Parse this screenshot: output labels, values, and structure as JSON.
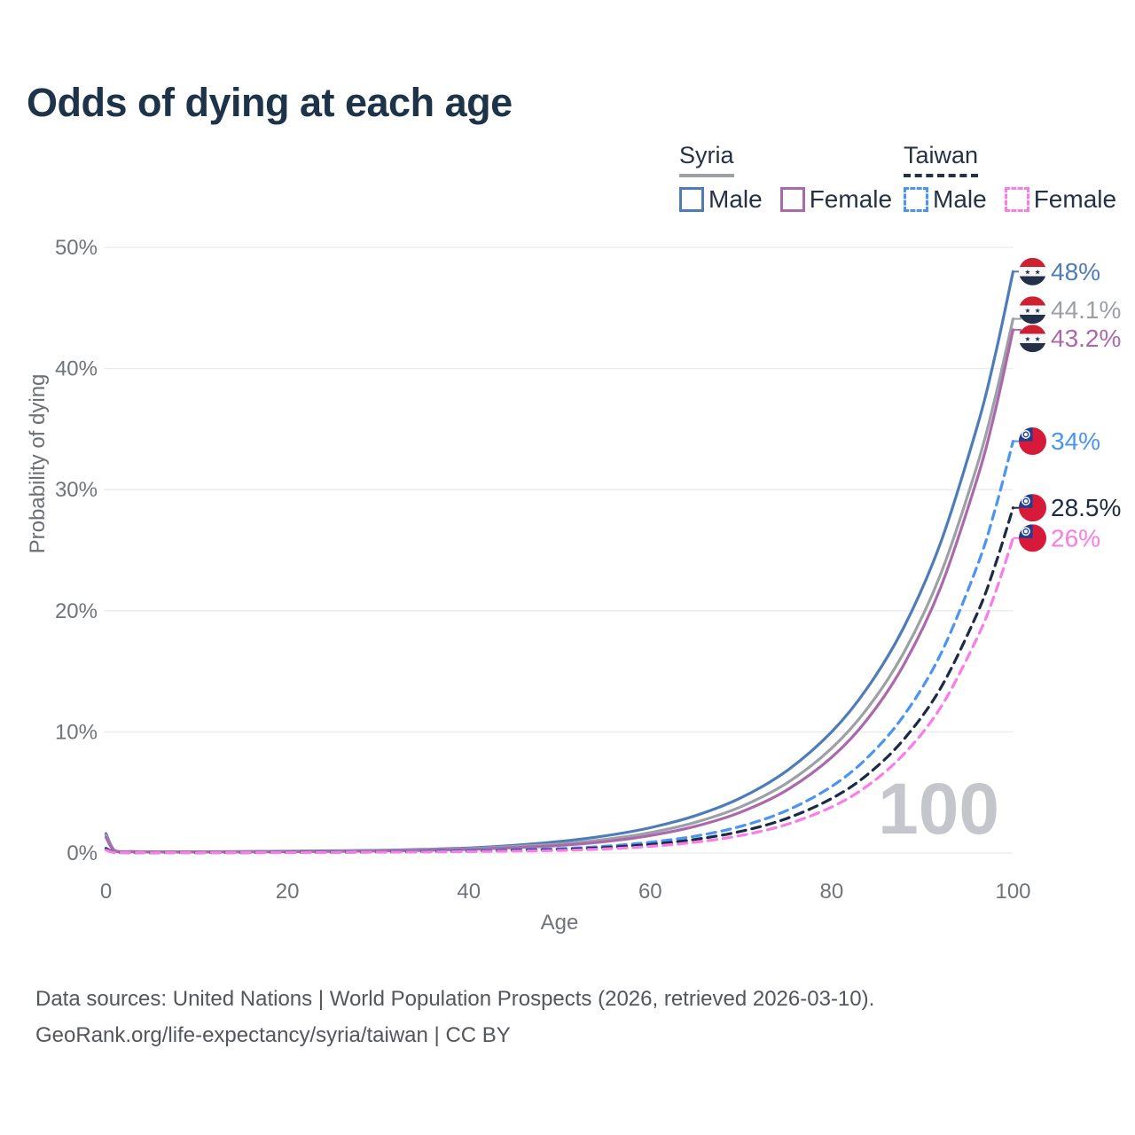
{
  "title": "Odds of dying at each age",
  "watermark": "100",
  "legend": {
    "groups": [
      {
        "country": "Syria",
        "line_style": "solid",
        "underline_color": "#9da0a4",
        "items": [
          {
            "label": "Male",
            "color": "#4d7cb8"
          },
          {
            "label": "Female",
            "color": "#ab68ad"
          }
        ]
      },
      {
        "country": "Taiwan",
        "line_style": "dashed",
        "underline_color": "#253246",
        "items": [
          {
            "label": "Male",
            "color": "#4b94f2"
          },
          {
            "label": "Female",
            "color": "#fa7ce6"
          }
        ]
      }
    ]
  },
  "axes": {
    "x": {
      "title": "Age",
      "min": 0,
      "max": 100,
      "ticks": [
        {
          "value": 0,
          "label": "0"
        },
        {
          "value": 20,
          "label": "20"
        },
        {
          "value": 40,
          "label": "40"
        },
        {
          "value": 60,
          "label": "60"
        },
        {
          "value": 80,
          "label": "80"
        },
        {
          "value": 100,
          "label": "100"
        }
      ]
    },
    "y": {
      "title": "Probability of dying",
      "min": 0,
      "max": 50,
      "ticks": [
        {
          "value": 0,
          "label": "0%"
        },
        {
          "value": 10,
          "label": "10%"
        },
        {
          "value": 20,
          "label": "20%"
        },
        {
          "value": 30,
          "label": "30%"
        },
        {
          "value": 40,
          "label": "40%"
        },
        {
          "value": 50,
          "label": "50%"
        }
      ]
    }
  },
  "footer": {
    "line1": "Data sources: United Nations | World Population Prospects (2026, retrieved 2026-03-10).",
    "line2": "GeoRank.org/life-expectancy/syria/taiwan | CC BY"
  },
  "flag_colors": {
    "syria": {
      "top": "#cd2030",
      "middle": "#f7f8fa",
      "bottom": "#233048",
      "stars": "#233048"
    },
    "taiwan": {
      "field": "#d7193a",
      "canton": "#1e3f8f",
      "sun": "#ffffff"
    }
  },
  "chart_data": {
    "type": "line",
    "title": "Odds of dying at each age",
    "xlabel": "Age",
    "ylabel": "Probability of dying",
    "xlim": [
      0,
      100
    ],
    "ylim": [
      0,
      50
    ],
    "grid": "horizontal",
    "legend_position": "top-right",
    "x": [
      0,
      1,
      3,
      5,
      10,
      15,
      20,
      25,
      30,
      35,
      40,
      45,
      50,
      55,
      60,
      65,
      70,
      75,
      80,
      84,
      88,
      92,
      96,
      98,
      100
    ],
    "series": [
      {
        "name": "Syria Male",
        "country": "Syria",
        "sex": "male",
        "color": "#4d7cb8",
        "dash": false,
        "flag": "syria",
        "end_label": "48%",
        "values": [
          1.6,
          0.2,
          0.12,
          0.1,
          0.1,
          0.12,
          0.15,
          0.18,
          0.22,
          0.3,
          0.42,
          0.64,
          0.95,
          1.41,
          2.09,
          3.09,
          4.56,
          6.76,
          10.0,
          13.7,
          18.7,
          25.6,
          35.1,
          41.0,
          48
        ]
      },
      {
        "name": "Syria Both sexes",
        "country": "Syria",
        "sex": "both",
        "color": "#9da0a4",
        "dash": false,
        "flag": "syria",
        "end_label": "44.1%",
        "values": [
          1.45,
          0.18,
          0.11,
          0.09,
          0.09,
          0.1,
          0.13,
          0.16,
          0.2,
          0.26,
          0.36,
          0.54,
          0.74,
          1.12,
          1.68,
          2.54,
          3.82,
          5.75,
          8.65,
          12.0,
          16.6,
          23.0,
          31.9,
          37.5,
          44.1
        ]
      },
      {
        "name": "Syria Female",
        "country": "Syria",
        "sex": "female",
        "color": "#ab68ad",
        "dash": false,
        "flag": "syria",
        "end_label": "43.2%",
        "values": [
          1.3,
          0.16,
          0.1,
          0.08,
          0.08,
          0.09,
          0.11,
          0.14,
          0.17,
          0.22,
          0.3,
          0.45,
          0.62,
          0.94,
          1.44,
          2.21,
          3.38,
          5.17,
          7.9,
          11.1,
          15.6,
          21.9,
          30.8,
          36.4,
          43.2
        ]
      },
      {
        "name": "Taiwan Male",
        "country": "Taiwan",
        "sex": "male",
        "color": "#4b94f2",
        "dash": true,
        "flag": "taiwan",
        "end_label": "34%",
        "values": [
          0.4,
          0.05,
          0.03,
          0.03,
          0.03,
          0.04,
          0.06,
          0.08,
          0.11,
          0.15,
          0.21,
          0.28,
          0.36,
          0.56,
          0.89,
          1.4,
          2.21,
          3.49,
          5.5,
          7.92,
          11.4,
          16.4,
          23.6,
          28.3,
          34
        ]
      },
      {
        "name": "Taiwan Both sexes",
        "country": "Taiwan",
        "sex": "both",
        "color": "#1c2b45",
        "dash": true,
        "flag": "taiwan",
        "end_label": "28.5%",
        "values": [
          0.35,
          0.04,
          0.02,
          0.02,
          0.03,
          0.03,
          0.05,
          0.06,
          0.08,
          0.11,
          0.15,
          0.21,
          0.28,
          0.45,
          0.71,
          1.13,
          1.79,
          2.84,
          4.5,
          6.51,
          9.42,
          13.6,
          19.7,
          23.7,
          28.5
        ]
      },
      {
        "name": "Taiwan Female",
        "country": "Taiwan",
        "sex": "female",
        "color": "#fa7ce6",
        "dash": true,
        "flag": "taiwan",
        "end_label": "26%",
        "values": [
          0.25,
          0.03,
          0.02,
          0.02,
          0.02,
          0.03,
          0.04,
          0.05,
          0.07,
          0.09,
          0.12,
          0.16,
          0.21,
          0.34,
          0.55,
          0.9,
          1.45,
          2.35,
          3.8,
          5.58,
          8.2,
          12.0,
          17.7,
          21.4,
          26
        ]
      }
    ]
  }
}
